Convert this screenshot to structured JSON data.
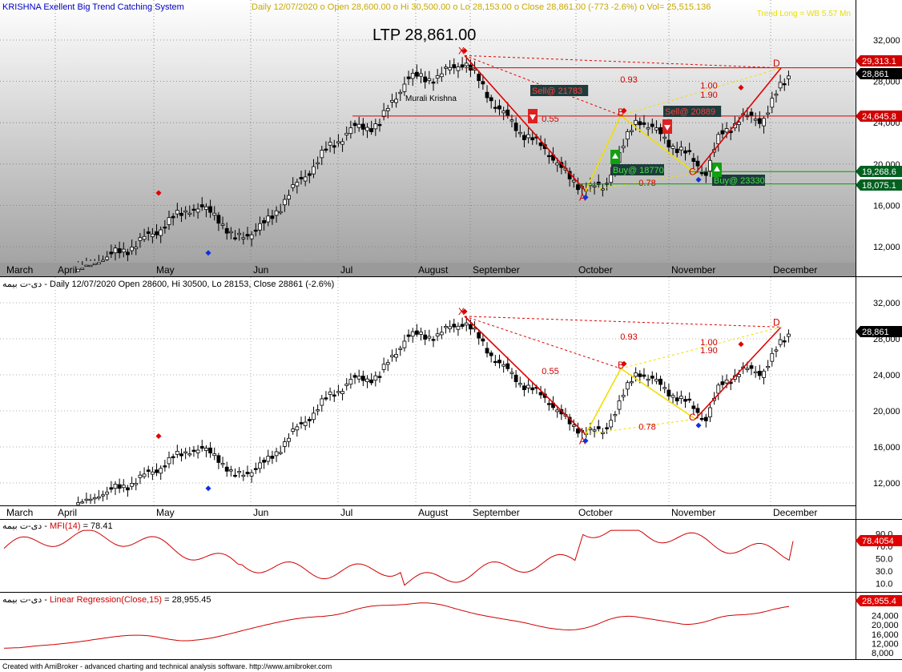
{
  "top_pane": {
    "header_name": "KRISHNA Exellent Big Trend Catching System",
    "header_rest": "Daily 12/07/2020  o  Open 28,600.00  o  Hi 30,500.00  o  Lo 28,153.00  o  Close 28,861.00  (-773 -2.6%)  o  Vol= 25,515.136",
    "header_right": "Trend Long = WB 5.57 Mn",
    "ltp": "LTP 28,861.00",
    "watermark": "Murali Krishna",
    "price_labels": [
      {
        "text": "29,313.1",
        "value": 29313.1,
        "color": "#d00000"
      },
      {
        "text": "28,861",
        "value": 28861,
        "color": "#000000"
      },
      {
        "text": "24,645.8",
        "value": 24645.8,
        "color": "#d00000"
      },
      {
        "text": "19,268.6",
        "value": 19268.6,
        "color": "#006020"
      },
      {
        "text": "18,075.1",
        "value": 18075.1,
        "color": "#006020"
      }
    ],
    "signals": [
      {
        "text": "Sell@ 21783",
        "dir": "sell"
      },
      {
        "text": "Sell@ 20889",
        "dir": "sell"
      },
      {
        "text": "Buy@ 18770",
        "dir": "buy"
      },
      {
        "text": "Buy@ 23330",
        "dir": "buy"
      }
    ],
    "ratios": [
      "0.93",
      "0.55",
      "1.00",
      "1.90",
      "0.78"
    ],
    "points": [
      "X",
      "A",
      "B",
      "C",
      "D"
    ]
  },
  "mid_pane": {
    "title": "دی-ت بیمه - Daily 12/07/2020 Open 28600, Hi 30500, Lo 28153, Close 28861 (-2.6%)",
    "last_label": "28,861",
    "ratios": [
      "0.93",
      "0.55",
      "1.00",
      "1.90",
      "0.78"
    ]
  },
  "mfi_pane": {
    "title_prefix": "دی-ت بیمه - ",
    "title_name": "MFI(14)",
    "title_value": " = 78.41",
    "last_label": "78.4054",
    "ticks": [
      "90.0",
      "70.0",
      "50.0",
      "30.0",
      "10.0"
    ]
  },
  "lr_pane": {
    "title_prefix": "دی-ت بیمه - ",
    "title_name": "Linear Regression(Close,15)",
    "title_value": " = 28,955.45",
    "last_label": "28,955.4",
    "ticks": [
      "24,000",
      "20,000",
      "16,000",
      "12,000",
      "8,000"
    ]
  },
  "footer": "Created with AmiBroker - advanced charting and technical analysis software. http://www.amibroker.com",
  "chart_data": {
    "type": "candlestick",
    "y_ticks": [
      "32,000",
      "28,000",
      "24,000",
      "20,000",
      "16,000",
      "12,000"
    ],
    "months": [
      "March",
      "April",
      "May",
      "Jun",
      "Jul",
      "August",
      "September",
      "October",
      "November",
      "December"
    ],
    "harmonic_pattern": {
      "X": 30500,
      "A": 17400,
      "B": 24700,
      "C": 19100,
      "D": 29300
    },
    "close_path": [
      {
        "month": "March",
        "close": 9800
      },
      {
        "month": "April",
        "close": 12500
      },
      {
        "month": "May",
        "close": 16000
      },
      {
        "month": "May",
        "close": 12500
      },
      {
        "month": "Jun",
        "close": 14500
      },
      {
        "month": "Jul",
        "close": 22500
      },
      {
        "month": "Jul",
        "close": 24500
      },
      {
        "month": "August",
        "close": 28500
      },
      {
        "month": "August",
        "close": 30000
      },
      {
        "month": "September",
        "close": 24000
      },
      {
        "month": "October",
        "close": 17500
      },
      {
        "month": "October",
        "close": 24500
      },
      {
        "month": "November",
        "close": 19000
      },
      {
        "month": "December",
        "close": 28861
      }
    ],
    "mfi_last": 78.41,
    "linreg_last": 28955.45
  },
  "colors": {
    "top_bg_top": "#ffffff",
    "top_bg_bottom": "#a8a8a8",
    "pattern_red": "#e00000",
    "pattern_yellow": "#f0e000",
    "support_green": "#00a000",
    "label_dark": "#1e3c3c"
  }
}
